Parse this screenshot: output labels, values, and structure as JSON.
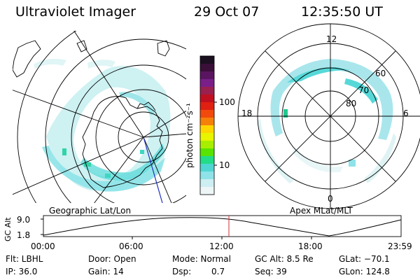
{
  "header": {
    "title": "Ultraviolet Imager",
    "date": "29 Oct 07",
    "time": "12:35:50 UT"
  },
  "colorbar": {
    "unit_label": "photon cm⁻²s⁻¹",
    "ticks": [
      "100",
      "10"
    ],
    "colors": [
      "#1a1020",
      "#3a0f38",
      "#5a1560",
      "#7a1f8a",
      "#9a2050",
      "#c01020",
      "#e02010",
      "#f24a0c",
      "#f5800a",
      "#ffd600",
      "#e8f400",
      "#a8ee00",
      "#58e400",
      "#22dc88",
      "#4fd6d2",
      "#8ee2e8",
      "#cdeef2",
      "#eef5f6"
    ]
  },
  "geo_map": {
    "label": "Geographic Lat/Lon"
  },
  "polar_map": {
    "label": "Apex MLat/MLT",
    "mlt_labels": {
      "top": "12",
      "left": "18",
      "right": "6",
      "bottom": "0"
    },
    "lat_labels": [
      "80",
      "70",
      "60"
    ]
  },
  "altitude_plot": {
    "ylabel": "GC Alt",
    "yticks": [
      "9.0",
      "1.8"
    ],
    "xticks": [
      "00:00",
      "06:00",
      "12:00",
      "18:00",
      "23:59"
    ]
  },
  "footer": {
    "row1": {
      "filter": "Flt: LBHL",
      "door": "Door: Open",
      "mode": "Mode: Normal",
      "gc_alt": "GC Alt: 8.5 Re",
      "glat": "GLat: −70.1"
    },
    "row2": {
      "ip": "IP: 36.0",
      "gain": "Gain: 14",
      "dsp_label": "Dsp:",
      "dsp_value": "0.7",
      "seq": "Seq: 39",
      "glon": "GLon: 124.8"
    }
  }
}
